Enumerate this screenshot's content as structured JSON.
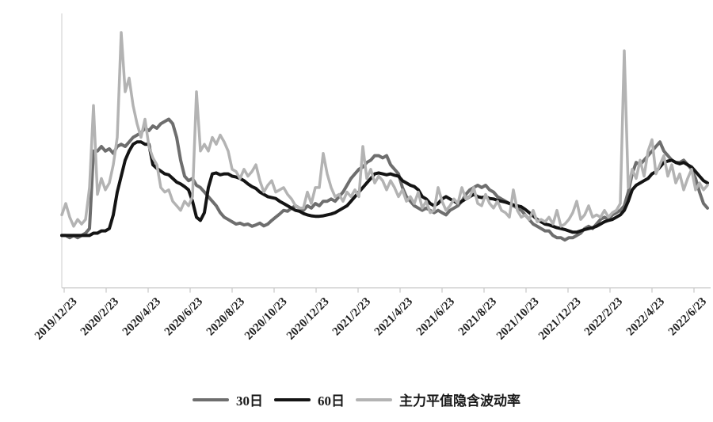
{
  "legend": [
    {
      "label": "30日",
      "color": "#6e6e6e"
    },
    {
      "label": "60日",
      "color": "#141414"
    },
    {
      "label": "主力平值隐含波动率",
      "color": "#b3b3b3"
    }
  ],
  "axis_colors": {
    "y_axis_line": "#d9d9d9",
    "x_axis_line": "#c6c6c6",
    "tick": "#c6c6c6"
  },
  "chart_data": {
    "type": "line",
    "title": "",
    "xlabel": "",
    "ylabel": "",
    "ylim": [
      0,
      0.6
    ],
    "grid": false,
    "legend_position": "bottom",
    "y_ticks": [
      "0",
      "0.1",
      "0.2",
      "0.3",
      "0.4",
      "0.5",
      "0.6"
    ],
    "x_tick_labels": [
      "2019/12/23",
      "2020/2/23",
      "2020/4/23",
      "2020/6/23",
      "2020/8/23",
      "2020/10/23",
      "2020/12/23",
      "2021/2/23",
      "2021/4/23",
      "2021/6/23",
      "2021/8/23",
      "2021/10/23",
      "2021/12/23",
      "2022/2/23",
      "2022/4/23",
      "2022/6/23"
    ],
    "series": [
      {
        "name": "30日",
        "color": "#6e6e6e",
        "width": 4,
        "values": [
          0.115,
          0.115,
          0.11,
          0.115,
          0.11,
          0.115,
          0.12,
          0.13,
          0.3,
          0.3,
          0.31,
          0.3,
          0.305,
          0.295,
          0.31,
          0.315,
          0.31,
          0.32,
          0.33,
          0.335,
          0.34,
          0.35,
          0.345,
          0.355,
          0.35,
          0.36,
          0.365,
          0.37,
          0.36,
          0.33,
          0.28,
          0.245,
          0.235,
          0.24,
          0.225,
          0.22,
          0.21,
          0.2,
          0.19,
          0.18,
          0.165,
          0.155,
          0.15,
          0.145,
          0.14,
          0.142,
          0.138,
          0.14,
          0.135,
          0.138,
          0.142,
          0.136,
          0.14,
          0.148,
          0.155,
          0.162,
          0.17,
          0.168,
          0.175,
          0.18,
          0.175,
          0.17,
          0.18,
          0.175,
          0.185,
          0.18,
          0.19,
          0.19,
          0.195,
          0.19,
          0.2,
          0.21,
          0.225,
          0.24,
          0.25,
          0.26,
          0.265,
          0.275,
          0.28,
          0.29,
          0.29,
          0.285,
          0.29,
          0.27,
          0.26,
          0.25,
          0.22,
          0.2,
          0.19,
          0.18,
          0.175,
          0.17,
          0.175,
          0.17,
          0.165,
          0.17,
          0.165,
          0.16,
          0.17,
          0.175,
          0.18,
          0.19,
          0.205,
          0.215,
          0.22,
          0.225,
          0.22,
          0.225,
          0.215,
          0.21,
          0.2,
          0.195,
          0.19,
          0.185,
          0.18,
          0.175,
          0.17,
          0.16,
          0.15,
          0.14,
          0.135,
          0.13,
          0.125,
          0.125,
          0.115,
          0.11,
          0.11,
          0.105,
          0.11,
          0.11,
          0.115,
          0.12,
          0.13,
          0.135,
          0.13,
          0.14,
          0.15,
          0.155,
          0.15,
          0.16,
          0.165,
          0.17,
          0.18,
          0.21,
          0.25,
          0.275,
          0.27,
          0.28,
          0.29,
          0.3,
          0.31,
          0.32,
          0.3,
          0.29,
          0.28,
          0.275,
          0.275,
          0.28,
          0.27,
          0.26,
          0.24,
          0.21,
          0.185,
          0.175
        ]
      },
      {
        "name": "60日",
        "color": "#141414",
        "width": 4,
        "values": [
          0.115,
          0.115,
          0.115,
          0.115,
          0.115,
          0.115,
          0.115,
          0.115,
          0.12,
          0.12,
          0.125,
          0.125,
          0.13,
          0.16,
          0.21,
          0.245,
          0.28,
          0.3,
          0.315,
          0.32,
          0.32,
          0.315,
          0.315,
          0.27,
          0.262,
          0.256,
          0.25,
          0.248,
          0.24,
          0.232,
          0.228,
          0.222,
          0.215,
          0.19,
          0.155,
          0.148,
          0.165,
          0.22,
          0.25,
          0.252,
          0.248,
          0.25,
          0.25,
          0.245,
          0.243,
          0.24,
          0.235,
          0.228,
          0.222,
          0.218,
          0.21,
          0.205,
          0.2,
          0.198,
          0.196,
          0.19,
          0.185,
          0.18,
          0.175,
          0.17,
          0.168,
          0.163,
          0.16,
          0.158,
          0.157,
          0.157,
          0.158,
          0.16,
          0.162,
          0.165,
          0.17,
          0.175,
          0.18,
          0.19,
          0.2,
          0.21,
          0.22,
          0.23,
          0.24,
          0.25,
          0.252,
          0.25,
          0.248,
          0.25,
          0.247,
          0.245,
          0.235,
          0.23,
          0.225,
          0.222,
          0.215,
          0.2,
          0.195,
          0.185,
          0.18,
          0.185,
          0.195,
          0.2,
          0.195,
          0.19,
          0.185,
          0.19,
          0.195,
          0.2,
          0.205,
          0.2,
          0.198,
          0.2,
          0.196,
          0.195,
          0.192,
          0.19,
          0.188,
          0.185,
          0.182,
          0.18,
          0.178,
          0.172,
          0.165,
          0.158,
          0.15,
          0.145,
          0.14,
          0.138,
          0.135,
          0.132,
          0.13,
          0.128,
          0.125,
          0.122,
          0.122,
          0.125,
          0.128,
          0.13,
          0.132,
          0.135,
          0.14,
          0.145,
          0.148,
          0.15,
          0.155,
          0.16,
          0.17,
          0.19,
          0.215,
          0.225,
          0.23,
          0.235,
          0.24,
          0.25,
          0.255,
          0.265,
          0.275,
          0.278,
          0.28,
          0.275,
          0.272,
          0.275,
          0.27,
          0.265,
          0.255,
          0.245,
          0.235,
          0.23
        ]
      },
      {
        "name": "主力平值隐含波动率",
        "color": "#b3b3b3",
        "width": 3.5,
        "values": [
          0.16,
          0.185,
          0.155,
          0.135,
          0.15,
          0.14,
          0.15,
          0.22,
          0.4,
          0.205,
          0.24,
          0.215,
          0.23,
          0.27,
          0.33,
          0.56,
          0.43,
          0.46,
          0.4,
          0.36,
          0.33,
          0.37,
          0.31,
          0.285,
          0.27,
          0.22,
          0.21,
          0.215,
          0.19,
          0.18,
          0.17,
          0.19,
          0.18,
          0.2,
          0.43,
          0.3,
          0.315,
          0.3,
          0.33,
          0.315,
          0.335,
          0.32,
          0.3,
          0.26,
          0.255,
          0.24,
          0.26,
          0.245,
          0.255,
          0.27,
          0.235,
          0.21,
          0.225,
          0.235,
          0.21,
          0.215,
          0.22,
          0.205,
          0.195,
          0.18,
          0.175,
          0.175,
          0.21,
          0.185,
          0.22,
          0.22,
          0.295,
          0.25,
          0.22,
          0.2,
          0.205,
          0.19,
          0.21,
          0.2,
          0.215,
          0.2,
          0.31,
          0.24,
          0.26,
          0.23,
          0.245,
          0.235,
          0.215,
          0.235,
          0.22,
          0.2,
          0.215,
          0.19,
          0.2,
          0.185,
          0.21,
          0.175,
          0.19,
          0.165,
          0.17,
          0.22,
          0.19,
          0.17,
          0.18,
          0.195,
          0.185,
          0.22,
          0.195,
          0.2,
          0.22,
          0.185,
          0.18,
          0.205,
          0.185,
          0.175,
          0.19,
          0.17,
          0.165,
          0.155,
          0.215,
          0.17,
          0.155,
          0.16,
          0.15,
          0.17,
          0.145,
          0.15,
          0.145,
          0.155,
          0.14,
          0.17,
          0.135,
          0.14,
          0.15,
          0.165,
          0.19,
          0.15,
          0.16,
          0.18,
          0.155,
          0.16,
          0.155,
          0.17,
          0.155,
          0.165,
          0.17,
          0.185,
          0.52,
          0.22,
          0.26,
          0.24,
          0.28,
          0.245,
          0.3,
          0.325,
          0.25,
          0.27,
          0.29,
          0.245,
          0.27,
          0.23,
          0.25,
          0.215,
          0.24,
          0.26,
          0.215,
          0.23,
          0.215,
          0.225
        ]
      }
    ]
  }
}
